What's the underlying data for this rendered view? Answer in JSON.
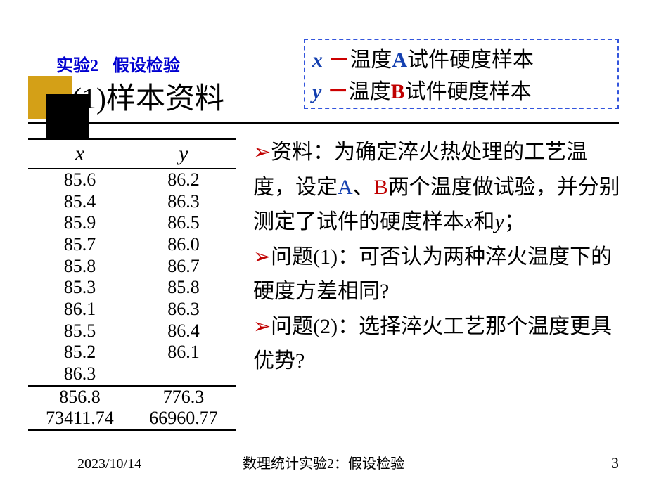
{
  "header": {
    "label_pre": "实验",
    "num": "2",
    "label_post": "假设检验"
  },
  "title": {
    "paren_open": "(",
    "num": "1",
    "paren_close": ")",
    "text": "样本资料"
  },
  "box": {
    "line1": {
      "var": "x",
      "dash": "－",
      "pre": "温度",
      "A": "A",
      "post": "试件硬度样本"
    },
    "line2": {
      "var": "y",
      "dash": "－",
      "pre": "温度",
      "B": "B",
      "post": "试件硬度样本"
    }
  },
  "table": {
    "head_x": "x",
    "head_y": "y",
    "rows": [
      [
        "85.6",
        "86.2"
      ],
      [
        "85.4",
        "86.3"
      ],
      [
        "85.9",
        "86.5"
      ],
      [
        "85.7",
        "86.0"
      ],
      [
        "85.8",
        "86.7"
      ],
      [
        "85.3",
        "85.8"
      ],
      [
        "86.1",
        "86.3"
      ],
      [
        "85.5",
        "86.4"
      ],
      [
        "85.2",
        "86.1"
      ],
      [
        "86.3",
        ""
      ]
    ],
    "sums": [
      "856.8",
      "776.3"
    ],
    "sums2": [
      "73411.74",
      "66960.77"
    ]
  },
  "body": {
    "p1_a": "资料：为确定淬火热处理的工艺温度，设定",
    "A": "A",
    "sep": "、",
    "B": "B",
    "p1_b": "两个温度做试验，并分别测定了试件的硬度样本",
    "xvar": "x",
    "and": "和",
    "yvar": "y",
    "semi": "；",
    "q1_label": "问题(1)：",
    "q1_text": "可否认为两种淬火温度下的硬度方差相同",
    "q2_label": "问题(2)：",
    "q2_text": "选择淬火工艺那个温度更具优势",
    "qmark": "?"
  },
  "footer": {
    "date": "2023/10/14",
    "center_pre": "数理统计实验",
    "center_num": "2",
    "center_post": "：假设检验",
    "page": "3"
  },
  "colors": {
    "blue": "#1540b0",
    "red": "#c00000",
    "gold": "#d4a017"
  }
}
